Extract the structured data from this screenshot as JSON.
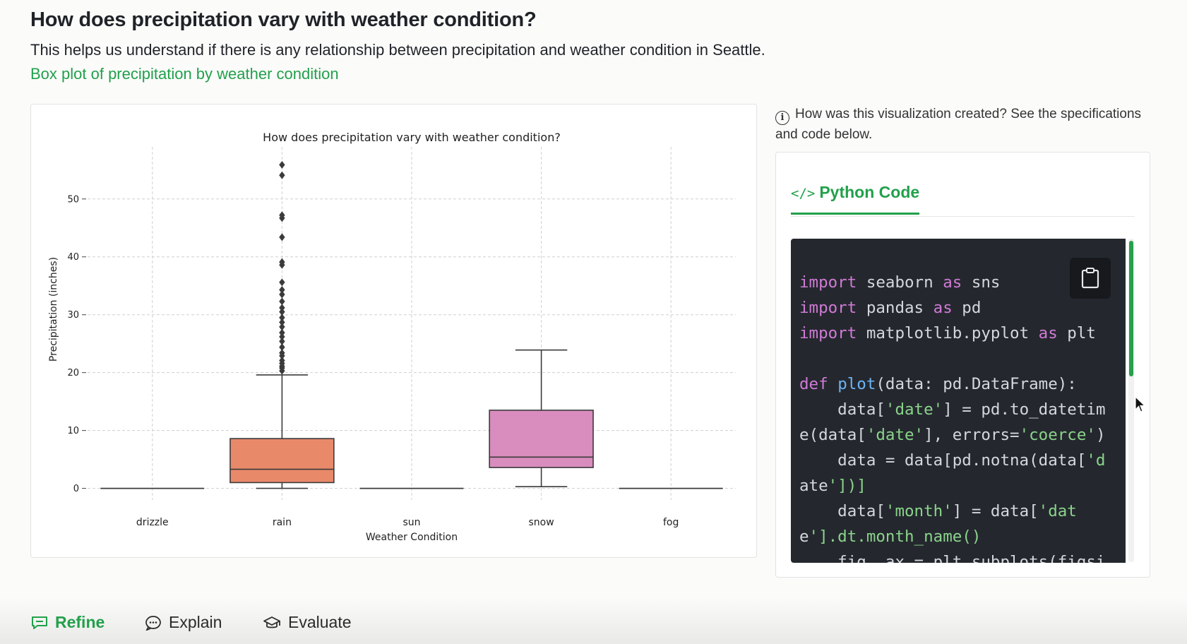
{
  "heading": "How does precipitation vary with weather condition?",
  "subtitle": "This helps us understand if there is any relationship between precipitation and weather condition in Seattle.",
  "chart_link": "Box plot of precipitation by weather condition",
  "info_text": "How was this visualization created? See the specifications and code below.",
  "code_tab_label": "Python Code",
  "code_lines": [
    "import seaborn as sns",
    "import pandas as pd",
    "import matplotlib.pyplot as plt",
    "",
    "def plot(data: pd.DataFrame):",
    "    data['date'] = pd.to_datetim",
    "e(data['date'], errors='coerce')",
    "    data = data[pd.notna(data['d",
    "ate'])]",
    "    data['month'] = data['dat",
    "e'].dt.month_name()",
    "    fig, ax = plt.subplots(figsi"
  ],
  "actions": [
    {
      "label": "Refine",
      "icon": "chat-bubble-icon"
    },
    {
      "label": "Explain",
      "icon": "speech-dots-icon"
    },
    {
      "label": "Evaluate",
      "icon": "graduation-cap-icon"
    }
  ],
  "colors": {
    "accent": "#22a04b",
    "rain": "#e8896a",
    "snow": "#d98cbe",
    "code_bg": "#24282e"
  },
  "chart_data": {
    "type": "box",
    "title": "How does precipitation vary with weather condition?",
    "xlabel": "Weather Condition",
    "ylabel": "Precipitation (inches)",
    "ylim": [
      -2,
      59
    ],
    "yticks": [
      0,
      10,
      20,
      30,
      40,
      50
    ],
    "grid": true,
    "categories": [
      "drizzle",
      "rain",
      "sun",
      "snow",
      "fog"
    ],
    "boxes": [
      {
        "name": "drizzle",
        "min": 0,
        "q1": 0,
        "median": 0,
        "q3": 0,
        "max": 0,
        "outliers": []
      },
      {
        "name": "rain",
        "min": 0,
        "q1": 1,
        "median": 3.3,
        "q3": 8.6,
        "max": 19.6,
        "outliers": [
          20.3,
          20.8,
          21.1,
          21.6,
          22.1,
          22.9,
          23.4,
          24.4,
          25.4,
          26.2,
          26.9,
          27.9,
          28.7,
          29.5,
          30.5,
          31.2,
          32.3,
          33.5,
          34.3,
          35.6,
          38.6,
          39.1,
          43.4,
          46.7,
          47.2,
          54.1,
          55.9
        ]
      },
      {
        "name": "sun",
        "min": 0,
        "q1": 0,
        "median": 0,
        "q3": 0,
        "max": 0,
        "outliers": []
      },
      {
        "name": "snow",
        "min": 0.3,
        "q1": 3.6,
        "median": 5.4,
        "q3": 13.5,
        "max": 23.9,
        "outliers": []
      },
      {
        "name": "fog",
        "min": 0,
        "q1": 0,
        "median": 0,
        "q3": 0,
        "max": 0,
        "outliers": []
      }
    ]
  }
}
